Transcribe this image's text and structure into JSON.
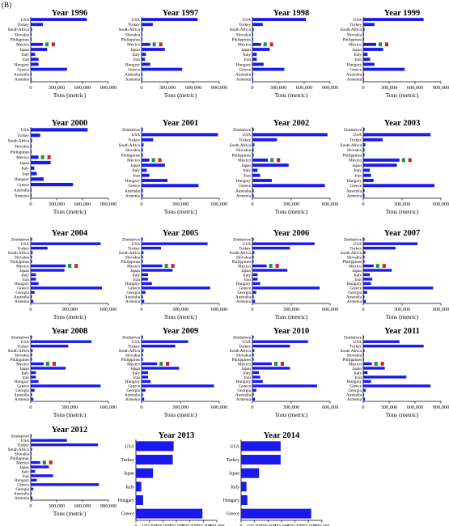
{
  "panel_label": "(B)",
  "colors": {
    "bar": "#1a1aee",
    "axis": "#000000",
    "flag_green": "#1f8f3a",
    "flag_red": "#cc2222"
  },
  "chart_data": [
    {
      "type": "bar",
      "title": "Year 1996",
      "xlabel": "Tons (metric)",
      "categories": [
        "USA",
        "Turkey",
        "South Africa",
        "Slovakia",
        "Philippines",
        "Mexico",
        "Japan",
        "Italy",
        "Iran",
        "Hungary",
        "Greece",
        "Australia",
        "Armenia"
      ],
      "values": [
        650000,
        140000,
        15000,
        10000,
        10000,
        140000,
        190000,
        50000,
        90000,
        90000,
        420000,
        10000,
        10000
      ],
      "xlim": [
        0,
        900000
      ],
      "xticks": [
        "0",
        "300,000",
        "600,000",
        "900,000"
      ]
    },
    {
      "type": "bar",
      "title": "Year 1997",
      "xlabel": "Tons (metric)",
      "categories": [
        "USA",
        "Turkey",
        "South Africa",
        "Slovakia",
        "Philippines",
        "Mexico",
        "Japan",
        "Italy",
        "Iran",
        "Hungary",
        "Greece",
        "Australia",
        "Armenia"
      ],
      "values": [
        650000,
        130000,
        15000,
        10000,
        10000,
        100000,
        270000,
        50000,
        40000,
        100000,
        470000,
        10000,
        10000
      ],
      "xlim": [
        0,
        900000
      ],
      "xticks": [
        "0",
        "300,000",
        "600,000",
        "900,000"
      ]
    },
    {
      "type": "bar",
      "title": "Year 1998",
      "xlabel": "Tons (metric)",
      "categories": [
        "USA",
        "Turkey",
        "South Africa",
        "Slovakia",
        "Philippines",
        "Mexico",
        "Japan",
        "Italy",
        "Iran",
        "Hungary",
        "Greece",
        "Australia",
        "Armenia"
      ],
      "values": [
        620000,
        120000,
        15000,
        10000,
        10000,
        100000,
        200000,
        50000,
        50000,
        130000,
        370000,
        10000,
        10000
      ],
      "xlim": [
        0,
        900000
      ],
      "xticks": [
        "0",
        "300,000",
        "600,000",
        "900,000"
      ]
    },
    {
      "type": "bar",
      "title": "Year 1999",
      "xlabel": "Tons (metric)",
      "categories": [
        "USA",
        "Turkey",
        "South Africa",
        "Slovakia",
        "Philippines",
        "Mexico",
        "Japan",
        "Italy",
        "Iran",
        "Hungary",
        "Greece",
        "Australia",
        "Armenia"
      ],
      "values": [
        700000,
        130000,
        15000,
        10000,
        10000,
        150000,
        230000,
        50000,
        80000,
        130000,
        480000,
        10000,
        10000
      ],
      "xlim": [
        0,
        900000
      ],
      "xticks": [
        "0",
        "300,000",
        "600,000",
        "900,000"
      ]
    },
    {
      "type": "bar",
      "title": "Year 2000",
      "xlabel": "Tons (metric)",
      "categories": [
        "USA",
        "Turkey",
        "South Africa",
        "Slovakia",
        "Philippines",
        "Mexico",
        "Japan",
        "Italy",
        "Iran",
        "Hungary",
        "Greece",
        "Australia",
        "Armenia"
      ],
      "values": [
        660000,
        110000,
        15000,
        10000,
        10000,
        90000,
        230000,
        40000,
        70000,
        150000,
        490000,
        10000,
        10000
      ],
      "xlim": [
        0,
        900000
      ],
      "xticks": [
        "0",
        "300,000",
        "600,000",
        "900,000"
      ]
    },
    {
      "type": "bar",
      "title": "Year 2001",
      "xlabel": "Tons (metric)",
      "categories": [
        "Zimbabwe",
        "USA",
        "Turkey",
        "South Africa",
        "Slovakia",
        "Philippines",
        "Mexico",
        "Japan",
        "Italy",
        "Iran",
        "Hungary",
        "Greece",
        "Australia",
        "Armenia"
      ],
      "values": [
        10000,
        590000,
        90000,
        15000,
        10000,
        10000,
        60000,
        180000,
        40000,
        60000,
        200000,
        440000,
        10000,
        10000
      ],
      "xlim": [
        0,
        600000
      ],
      "xticks": [
        "0",
        "300,000",
        "600,000"
      ]
    },
    {
      "type": "bar",
      "title": "Year 2002",
      "xlabel": "Tons (metric)",
      "categories": [
        "Zimbabwe",
        "USA",
        "Turkey",
        "South Africa",
        "Slovakia",
        "Philippines",
        "Mexico",
        "Japan",
        "Italy",
        "Iran",
        "Hungary",
        "Greece",
        "Australia",
        "Armenia"
      ],
      "values": [
        10000,
        580000,
        190000,
        15000,
        10000,
        10000,
        120000,
        280000,
        40000,
        60000,
        150000,
        560000,
        10000,
        10000
      ],
      "xlim": [
        0,
        600000
      ],
      "xticks": [
        "0",
        "300,000",
        "600,000"
      ]
    },
    {
      "type": "bar",
      "title": "Year 2003",
      "xlabel": "Tons (metric)",
      "categories": [
        "Zimbabwe",
        "USA",
        "Turkey",
        "South Africa",
        "Slovakia",
        "Philippines",
        "Mexico",
        "Japan",
        "Italy",
        "Iran",
        "Hungary",
        "Greece",
        "Australia",
        "Armenia"
      ],
      "values": [
        10000,
        520000,
        150000,
        15000,
        10000,
        10000,
        280000,
        260000,
        50000,
        60000,
        80000,
        550000,
        10000,
        10000
      ],
      "xlim": [
        0,
        600000
      ],
      "xticks": [
        "0",
        "300,000",
        "600,000"
      ]
    },
    {
      "type": "bar",
      "title": "Year 2004",
      "xlabel": "Tons (metric)",
      "categories": [
        "Zimbabwe",
        "USA",
        "Turkey",
        "South Africa",
        "Slovakia",
        "Philippines",
        "Mexico",
        "Japan",
        "Italy",
        "Iran",
        "Hungary",
        "Greece",
        "Georgia",
        "Australia",
        "Armenia"
      ],
      "values": [
        10000,
        540000,
        130000,
        15000,
        10000,
        10000,
        270000,
        260000,
        40000,
        40000,
        60000,
        550000,
        30000,
        10000,
        20000
      ],
      "xlim": [
        0,
        600000
      ],
      "xticks": [
        "0",
        "300,000",
        "600,000"
      ]
    },
    {
      "type": "bar",
      "title": "Year 2005",
      "xlabel": "Tons (metric)",
      "categories": [
        "Zimbabwe",
        "USA",
        "Turkey",
        "South Africa",
        "Slovakia",
        "Philippines",
        "Mexico",
        "Japan",
        "Italy",
        "Iran",
        "Hungary",
        "Greece",
        "Georgia",
        "Australia",
        "Armenia"
      ],
      "values": [
        10000,
        510000,
        150000,
        15000,
        10000,
        10000,
        160000,
        240000,
        50000,
        50000,
        80000,
        530000,
        30000,
        10000,
        20000
      ],
      "xlim": [
        0,
        600000
      ],
      "xticks": [
        "0",
        "300,000",
        "600,000"
      ]
    },
    {
      "type": "bar",
      "title": "Year 2006",
      "xlabel": "Tons (metric)",
      "categories": [
        "Zimbabwe",
        "USA",
        "Turkey",
        "South Africa",
        "Slovakia",
        "Philippines",
        "Mexico",
        "Japan",
        "Italy",
        "Iran",
        "Hungary",
        "Greece",
        "Georgia",
        "Australia",
        "Armenia"
      ],
      "values": [
        10000,
        480000,
        290000,
        15000,
        10000,
        10000,
        110000,
        270000,
        40000,
        40000,
        60000,
        520000,
        30000,
        10000,
        20000
      ],
      "xlim": [
        0,
        600000
      ],
      "xticks": [
        "0",
        "300,000",
        "600,000"
      ]
    },
    {
      "type": "bar",
      "title": "Year 2007",
      "xlabel": "Tons (metric)",
      "categories": [
        "Zimbabwe",
        "USA",
        "Turkey",
        "South Africa",
        "Slovakia",
        "Philippines",
        "Mexico",
        "Japan",
        "Italy",
        "Iran",
        "Hungary",
        "Greece",
        "Georgia",
        "Australia",
        "Armenia"
      ],
      "values": [
        10000,
        420000,
        250000,
        15000,
        10000,
        10000,
        80000,
        220000,
        50000,
        70000,
        60000,
        540000,
        30000,
        10000,
        20000
      ],
      "xlim": [
        0,
        600000
      ],
      "xticks": [
        "0",
        "300,000",
        "600,000"
      ]
    },
    {
      "type": "bar",
      "title": "Year 2008",
      "xlabel": "Tons (metric)",
      "categories": [
        "Zimbabwe",
        "USA",
        "Turkey",
        "South Africa",
        "Slovakia",
        "Philippines",
        "Mexico",
        "Japan",
        "Italy",
        "Iran",
        "Hungary",
        "Greece",
        "Georgia",
        "Australia",
        "Armenia"
      ],
      "values": [
        10000,
        470000,
        290000,
        15000,
        10000,
        10000,
        100000,
        270000,
        40000,
        40000,
        60000,
        540000,
        30000,
        10000,
        20000
      ],
      "xlim": [
        0,
        600000
      ],
      "xticks": [
        "0",
        "300,000",
        "600,000"
      ]
    },
    {
      "type": "bar",
      "title": "Year 2009",
      "xlabel": "Tons (metric)",
      "categories": [
        "Zimbabwe",
        "USA",
        "Turkey",
        "South Africa",
        "Slovakia",
        "Philippines",
        "Mexico",
        "Japan",
        "Italy",
        "Iran",
        "Hungary",
        "Greece",
        "Georgia",
        "Australia",
        "Armenia"
      ],
      "values": [
        10000,
        360000,
        260000,
        15000,
        10000,
        10000,
        120000,
        290000,
        50000,
        50000,
        70000,
        560000,
        30000,
        10000,
        20000
      ],
      "xlim": [
        0,
        600000
      ],
      "xticks": [
        "0",
        "300,000",
        "600,000"
      ]
    },
    {
      "type": "bar",
      "title": "Year 2010",
      "xlabel": "Tons (metric)",
      "categories": [
        "Zimbabwe",
        "USA",
        "Turkey",
        "South Africa",
        "Slovakia",
        "Philippines",
        "Mexico",
        "Japan",
        "Italy",
        "Iran",
        "Hungary",
        "Greece",
        "Georgia",
        "Australia",
        "Armenia"
      ],
      "values": [
        10000,
        430000,
        290000,
        15000,
        10000,
        10000,
        150000,
        290000,
        50000,
        60000,
        80000,
        500000,
        30000,
        10000,
        20000
      ],
      "xlim": [
        0,
        600000
      ],
      "xticks": [
        "0",
        "300,000",
        "600,000"
      ]
    },
    {
      "type": "bar",
      "title": "Year 2011",
      "xlabel": "Tons (metric)",
      "categories": [
        "Zimbabwe",
        "USA",
        "Turkey",
        "South Africa",
        "Slovakia",
        "Philippines",
        "Mexico",
        "Japan",
        "Italy",
        "Iran",
        "Hungary",
        "Greece",
        "Georgia",
        "Australia",
        "Armenia"
      ],
      "values": [
        10000,
        420000,
        700000,
        15000,
        10000,
        10000,
        100000,
        250000,
        50000,
        500000,
        90000,
        780000,
        30000,
        10000,
        20000
      ],
      "xlim": [
        0,
        900000
      ],
      "xticks": [
        "0",
        "300,000",
        "600,000",
        "900,000"
      ]
    },
    {
      "type": "bar",
      "title": "Year 2012",
      "xlabel": "Tons (metric)",
      "categories": [
        "Zimbabwe",
        "USA",
        "Turkey",
        "South Africa",
        "Slovakia",
        "Philippines",
        "Mexico",
        "Japan",
        "Italy",
        "Iran",
        "Hungary",
        "Greece",
        "Georgia",
        "Australia",
        "Armenia"
      ],
      "values": [
        10000,
        420000,
        780000,
        15000,
        10000,
        10000,
        110000,
        210000,
        50000,
        260000,
        70000,
        790000,
        30000,
        10000,
        20000
      ],
      "xlim": [
        0,
        900000
      ],
      "xticks": [
        "0",
        "300,000",
        "600,000",
        "900,000"
      ]
    },
    {
      "type": "bar",
      "title": "Year 2013",
      "xlabel": "Tons (metric)",
      "categories": [
        "USA",
        "Turkey",
        "Japan",
        "Italy",
        "Hungary",
        "Greece"
      ],
      "values": [
        420000,
        410000,
        190000,
        60000,
        80000,
        740000
      ],
      "xlim": [
        0,
        900000
      ],
      "xticks": [
        "0",
        "150,000",
        "300,000",
        "450,000",
        "600,000",
        "750,000",
        "900,000"
      ]
    },
    {
      "type": "bar",
      "title": "Year 2014",
      "xlabel": "Tons (metric)",
      "categories": [
        "USA",
        "Turkey",
        "Japan",
        "Italy",
        "Hungary",
        "Greece"
      ],
      "values": [
        440000,
        440000,
        200000,
        60000,
        70000,
        780000
      ],
      "xlim": [
        0,
        900000
      ],
      "xticks": [
        "0",
        "150,000",
        "300,000",
        "450,000",
        "600,000",
        "750,000",
        "900,000"
      ]
    }
  ]
}
